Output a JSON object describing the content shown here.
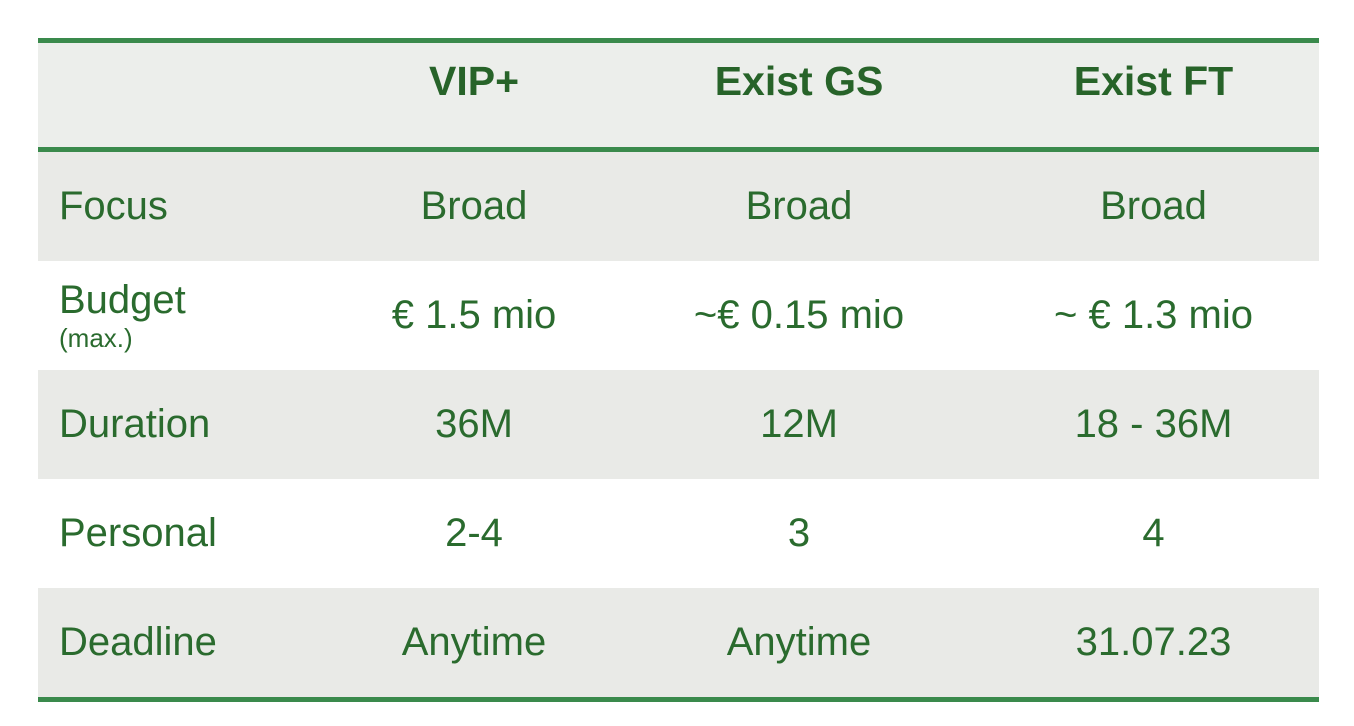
{
  "table": {
    "columns": [
      "",
      "VIP+",
      "Exist GS",
      "Exist FT"
    ],
    "rows": [
      {
        "label": "Focus",
        "sublabel": "",
        "values": [
          "Broad",
          "Broad",
          "Broad"
        ]
      },
      {
        "label": "Budget",
        "sublabel": "(max.)",
        "values": [
          "€ 1.5 mio",
          "~€ 0.15 mio",
          "~ € 1.3 mio"
        ]
      },
      {
        "label": "Duration",
        "sublabel": "",
        "values": [
          "36M",
          "12M",
          "18 - 36M"
        ]
      },
      {
        "label": "Personal",
        "sublabel": "",
        "values": [
          "2-4",
          "3",
          "4"
        ]
      },
      {
        "label": "Deadline",
        "sublabel": "",
        "values": [
          "Anytime",
          "Anytime",
          "31.07.23"
        ]
      }
    ]
  },
  "colors": {
    "accent_rule": "#3a8a4c",
    "text": "#2a6b2e",
    "row_shade": "#e9eae7"
  }
}
